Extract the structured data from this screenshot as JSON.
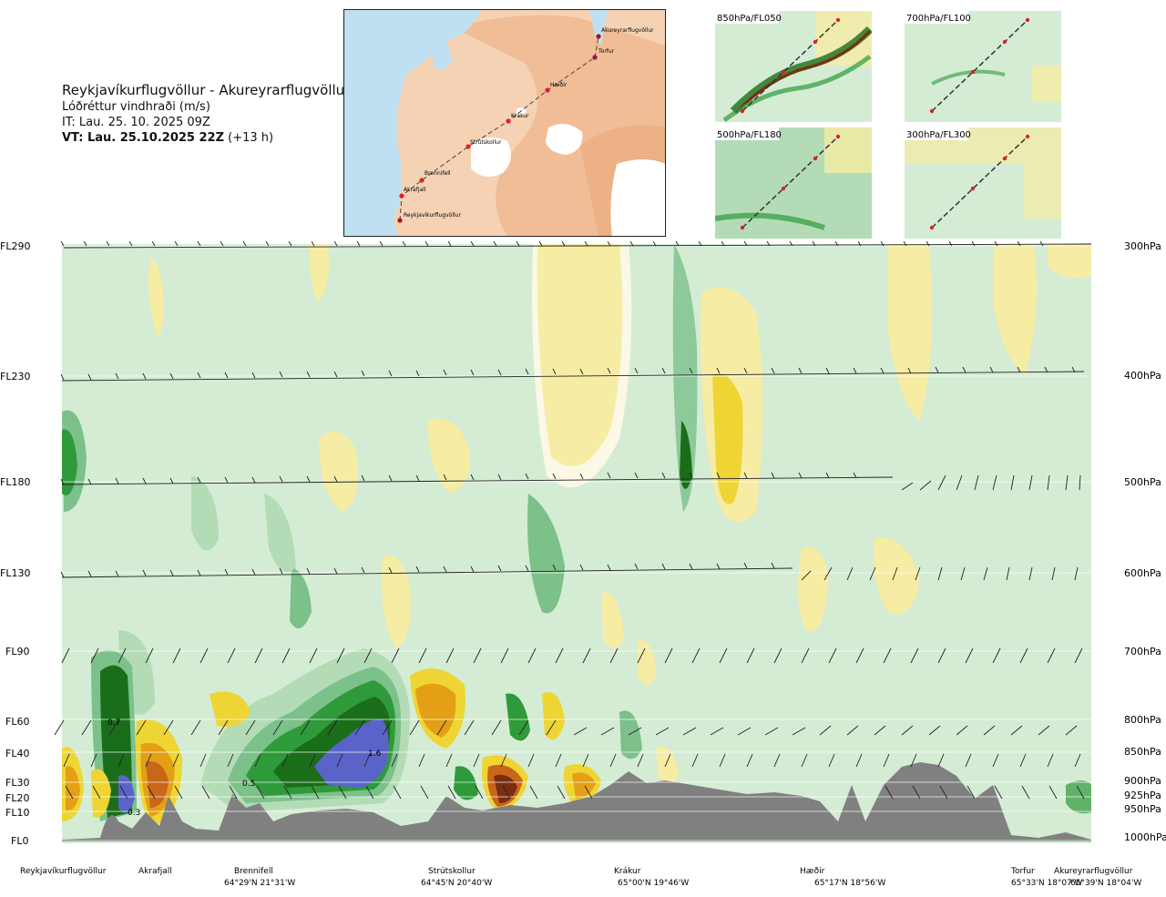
{
  "title": {
    "route": "Reykjavíkurflugvöllur - Akureyrarflugvöllur",
    "variable": "Lóðréttur vindhraði (m/s)",
    "it": "IT: Lau. 25. 10. 2025 09Z",
    "vt_bold": "VT: Lau. 25.10.2025 22Z",
    "vt_lead": "(+13 h)"
  },
  "route_map": {
    "waypoints": [
      "Akureyrarflugvöllur",
      "Torfur",
      "Hæðir",
      "Krákur",
      "Strútskollur",
      "Brennifell",
      "Akrafjall",
      "Reykjavíkurflugvöllur"
    ],
    "colors": {
      "sea": "#bfe0f0",
      "land": "#f5d2b4",
      "highland": "#eeb48a",
      "glacier": "#ffffff",
      "route": "#444444",
      "waypoint": "#e0202a"
    }
  },
  "mini_panels": [
    {
      "label": "850hPa/FL050"
    },
    {
      "label": "700hPa/FL100"
    },
    {
      "label": "500hPa/FL180"
    },
    {
      "label": "300hPa/FL300"
    }
  ],
  "chart_data": {
    "type": "heatmap",
    "xlabel": "",
    "ylabel": "",
    "y_left_labels": [
      "FL290",
      "FL230",
      "FL180",
      "FL130",
      "FL90",
      "FL60",
      "FL40",
      "FL30",
      "FL20",
      "FL10",
      "FL0"
    ],
    "y_right_labels": [
      "300hPa",
      "400hPa",
      "500hPa",
      "600hPa",
      "700hPa",
      "800hPa",
      "850hPa",
      "900hPa",
      "925hPa",
      "950hPa",
      "1000hPa"
    ],
    "pressure_levels_hpa": [
      300,
      400,
      500,
      600,
      700,
      800,
      850,
      900,
      925,
      950,
      1000
    ],
    "stations": [
      {
        "name": "Reykjavíkurflugvöllur",
        "coord": ""
      },
      {
        "name": "Akrafjall",
        "coord": ""
      },
      {
        "name": "Brennifell",
        "coord": "64°29'N 21°31'W"
      },
      {
        "name": "Strútskollur",
        "coord": "64°45'N 20°40'W"
      },
      {
        "name": "Krákur",
        "coord": "65°00'N 19°46'W"
      },
      {
        "name": "Hæðir",
        "coord": "65°17'N 18°56'W"
      },
      {
        "name": "Torfur",
        "coord": "65°33'N 18°07'W"
      },
      {
        "name": "Akureyrarflugvöllur",
        "coord": "65°39'N 18°04'W"
      }
    ],
    "annotations": [
      "0.7",
      "1.6",
      "0.5",
      "0.3"
    ],
    "colors": {
      "strong_up": "#5a64c8",
      "up_3": "#1a6e1a",
      "up_2": "#2f9a3a",
      "up_1": "#7cc08a",
      "up_0": "#b3dcb6",
      "neutral": "#d4ecd4",
      "near_zero": "#fbf8e6",
      "down_1": "#f6eca4",
      "down_2": "#eed534",
      "down_3": "#e3a016",
      "down_4": "#c8661a",
      "down_5": "#7a2e10",
      "terrain": "#808080"
    },
    "grid": true
  }
}
